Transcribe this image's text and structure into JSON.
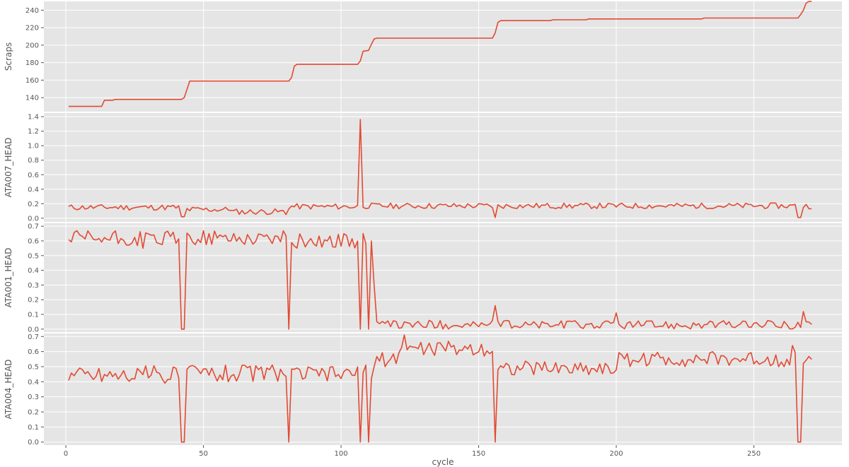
{
  "chart_data": [
    {
      "type": "line",
      "ylabel": "Scraps",
      "xlabel": "",
      "xlim": [
        -8,
        282
      ],
      "ylim": [
        124,
        250
      ],
      "yticks": [
        140,
        160,
        180,
        200,
        220,
        240
      ],
      "grid": true,
      "color": "#E24A33",
      "anchors": [
        [
          1,
          130
        ],
        [
          13,
          130
        ],
        [
          14,
          137
        ],
        [
          17,
          137
        ],
        [
          18,
          138
        ],
        [
          42,
          138
        ],
        [
          43,
          140
        ],
        [
          45,
          159
        ],
        [
          81,
          159
        ],
        [
          82,
          163
        ],
        [
          83,
          176
        ],
        [
          84,
          178
        ],
        [
          106,
          178
        ],
        [
          107,
          182
        ],
        [
          108,
          193
        ],
        [
          110,
          194
        ],
        [
          111,
          201
        ],
        [
          112,
          207
        ],
        [
          113,
          208
        ],
        [
          155,
          208
        ],
        [
          156,
          214
        ],
        [
          157,
          226
        ],
        [
          158,
          228
        ],
        [
          176,
          228
        ],
        [
          177,
          229
        ],
        [
          189,
          229
        ],
        [
          190,
          230
        ],
        [
          231,
          230
        ],
        [
          232,
          231
        ],
        [
          265,
          231
        ],
        [
          266,
          231
        ],
        [
          267,
          235
        ],
        [
          268,
          240
        ],
        [
          269,
          248
        ],
        [
          270,
          250
        ],
        [
          271,
          250
        ]
      ]
    },
    {
      "type": "line",
      "ylabel": "ATA007_HEAD",
      "xlabel": "",
      "xlim": [
        -8,
        282
      ],
      "ylim": [
        -0.05,
        1.45
      ],
      "yticks": [
        0.0,
        0.2,
        0.4,
        0.6,
        0.8,
        1.0,
        1.2,
        1.4
      ],
      "grid": true,
      "color": "#E24A33",
      "base": 0.15,
      "noise": 0.04,
      "dips": [
        [
          42,
          0.02
        ],
        [
          43,
          0.02
        ],
        [
          65,
          0.06
        ],
        [
          80,
          0.05
        ],
        [
          156,
          0.01
        ],
        [
          266,
          0.01
        ],
        [
          267,
          0.01
        ],
        [
          107,
          1.36
        ]
      ],
      "segments": [
        [
          1,
          42,
          0.15
        ],
        [
          43,
          60,
          0.12
        ],
        [
          60,
          80,
          0.09
        ],
        [
          81,
          106,
          0.16
        ],
        [
          108,
          271,
          0.17
        ]
      ]
    },
    {
      "type": "line",
      "ylabel": "ATA001_HEAD",
      "xlabel": "",
      "xlim": [
        -8,
        282
      ],
      "ylim": [
        -0.02,
        0.72
      ],
      "yticks": [
        0.0,
        0.1,
        0.2,
        0.3,
        0.4,
        0.5,
        0.6,
        0.7
      ],
      "grid": true,
      "color": "#E24A33",
      "segments": [
        [
          1,
          41,
          0.61,
          0.06
        ],
        [
          44,
          80,
          0.62,
          0.05
        ],
        [
          82,
          106,
          0.6,
          0.05
        ],
        [
          112,
          271,
          0.03,
          0.03
        ]
      ],
      "special": [
        [
          42,
          0.0
        ],
        [
          43,
          0.0
        ],
        [
          81,
          0.0
        ],
        [
          107,
          0.0
        ],
        [
          108,
          0.65
        ],
        [
          109,
          0.58
        ],
        [
          110,
          0.0
        ],
        [
          111,
          0.6
        ],
        [
          112,
          0.3
        ],
        [
          113,
          0.05
        ],
        [
          156,
          0.16
        ],
        [
          200,
          0.11
        ],
        [
          268,
          0.12
        ]
      ]
    },
    {
      "type": "line",
      "ylabel": "ATA004_HEAD",
      "xlabel": "cycle",
      "xlim": [
        -8,
        282
      ],
      "xticks": [
        0,
        50,
        100,
        150,
        200,
        250
      ],
      "ylim": [
        -0.02,
        0.72
      ],
      "yticks": [
        0.0,
        0.1,
        0.2,
        0.3,
        0.4,
        0.5,
        0.6,
        0.7
      ],
      "grid": true,
      "color": "#E24A33",
      "segments": [
        [
          1,
          41,
          0.45,
          0.06
        ],
        [
          44,
          80,
          0.46,
          0.06
        ],
        [
          82,
          106,
          0.45,
          0.05
        ],
        [
          112,
          120,
          0.55,
          0.05
        ],
        [
          121,
          155,
          0.62,
          0.05
        ],
        [
          157,
          200,
          0.49,
          0.05
        ],
        [
          201,
          265,
          0.55,
          0.05
        ],
        [
          268,
          271,
          0.55,
          0.03
        ]
      ],
      "special": [
        [
          42,
          0.0
        ],
        [
          43,
          0.0
        ],
        [
          81,
          0.0
        ],
        [
          107,
          0.0
        ],
        [
          108,
          0.46
        ],
        [
          109,
          0.51
        ],
        [
          110,
          0.0
        ],
        [
          111,
          0.42
        ],
        [
          112,
          0.5
        ],
        [
          156,
          0.0
        ],
        [
          123,
          0.71
        ],
        [
          264,
          0.64
        ],
        [
          266,
          0.0
        ],
        [
          267,
          0.0
        ]
      ]
    }
  ]
}
